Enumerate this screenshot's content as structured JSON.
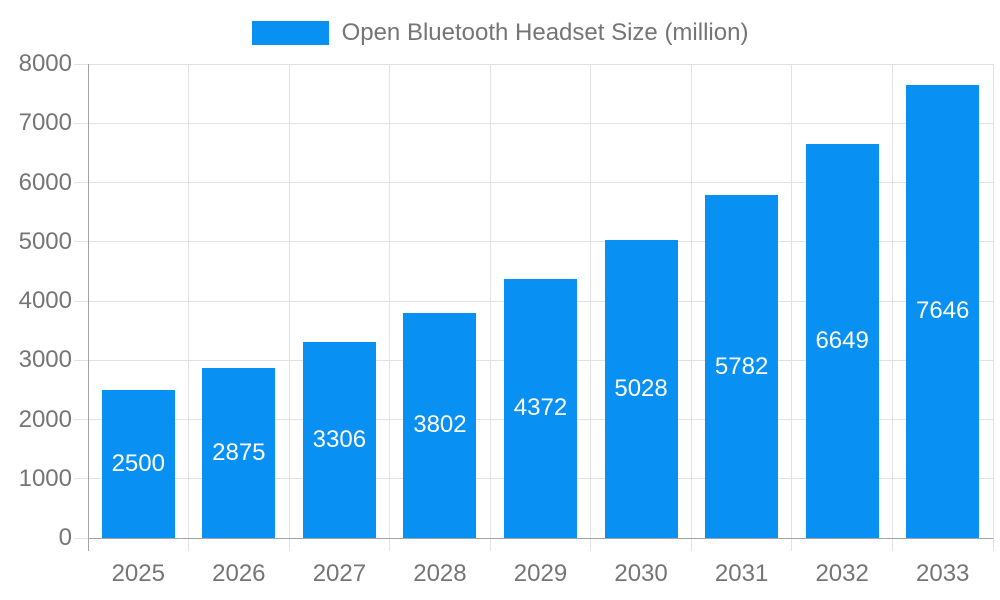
{
  "legend": {
    "label": "Open Bluetooth Headset Size (million)"
  },
  "chart_data": {
    "type": "bar",
    "title": "Open Bluetooth Headset Size (million)",
    "categories": [
      "2025",
      "2026",
      "2027",
      "2028",
      "2029",
      "2030",
      "2031",
      "2032",
      "2033"
    ],
    "series": [
      {
        "name": "Open Bluetooth Headset Size (million)",
        "values": [
          2500,
          2875,
          3306,
          3802,
          4372,
          5028,
          5782,
          6649,
          7646
        ],
        "color": "#0890F2"
      }
    ],
    "xlabel": "",
    "ylabel": "",
    "ylim": [
      0,
      8000
    ],
    "yticks": [
      0,
      1000,
      2000,
      3000,
      4000,
      5000,
      6000,
      7000,
      8000
    ],
    "grid": true,
    "legend_position": "top",
    "value_labels": "inside-center",
    "colors": {
      "bar": "#0890F2",
      "axis_line": "#A3A3A3",
      "grid_line": "#E2E2E2",
      "axis_label": "#757575",
      "value_label": "#FFFFFF",
      "background": "#FFFFFF"
    }
  }
}
